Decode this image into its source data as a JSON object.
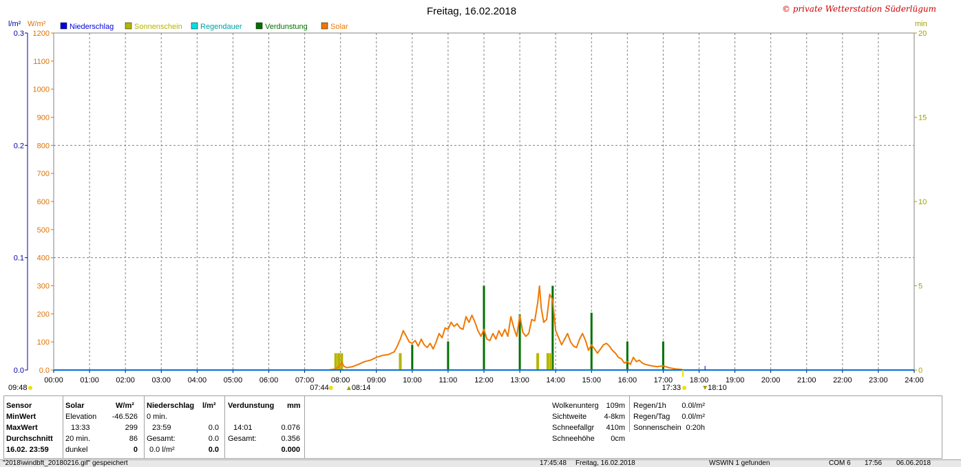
{
  "header": {
    "title": "Freitag, 16.02.2018",
    "copyright": "© private Wetterstation Süderlügum"
  },
  "legend": [
    {
      "label": "Niederschlag",
      "color": "#0000e0"
    },
    {
      "label": "Sonnenschein",
      "color": "#b5b500"
    },
    {
      "label": "Regendauer",
      "color": "#00e0e0"
    },
    {
      "label": "Verdunstung",
      "color": "#007000"
    },
    {
      "label": "Solar",
      "color": "#f07800"
    }
  ],
  "chart_data": {
    "type": "line",
    "title": "Freitag, 16.02.2018",
    "x_range": [
      "00:00",
      "24:00"
    ],
    "x_ticks": [
      "00:00",
      "01:00",
      "02:00",
      "03:00",
      "04:00",
      "05:00",
      "06:00",
      "07:00",
      "08:00",
      "09:00",
      "10:00",
      "11:00",
      "12:00",
      "13:00",
      "14:00",
      "15:00",
      "16:00",
      "17:00",
      "18:00",
      "19:00",
      "20:00",
      "21:00",
      "22:00",
      "23:00",
      "24:00"
    ],
    "axes": {
      "left_outer": {
        "unit": "l/m²",
        "range": [
          0,
          0.3
        ],
        "ticks": [
          "0.0",
          "0.1",
          "0.2",
          "0.3"
        ],
        "color": "#0000a0"
      },
      "left_inner": {
        "unit": "W/m²",
        "range": [
          0,
          1200
        ],
        "ticks": [
          "0.0",
          "100",
          "200",
          "300",
          "400",
          "500",
          "600",
          "700",
          "800",
          "900",
          "1000",
          "1100",
          "1200"
        ],
        "color": "#e07000"
      },
      "right": {
        "unit": "min",
        "range": [
          0,
          20
        ],
        "ticks": [
          "0",
          "5",
          "10",
          "15",
          "20"
        ],
        "color": "#a0a000"
      }
    },
    "grid": true,
    "markers": {
      "moon_set": "09:48",
      "sunrise": "07:44",
      "solar_start": "08:14",
      "sunset": "17:33",
      "moon_rise": "18:10"
    },
    "series": [
      {
        "name": "Solar",
        "color": "#f07800",
        "axis": "W/m²",
        "points": [
          [
            "07:40",
            0
          ],
          [
            "07:50",
            3
          ],
          [
            "07:55",
            8
          ],
          [
            "08:00",
            18
          ],
          [
            "08:02",
            30
          ],
          [
            "08:05",
            15
          ],
          [
            "08:10",
            8
          ],
          [
            "08:20",
            12
          ],
          [
            "08:30",
            20
          ],
          [
            "08:40",
            30
          ],
          [
            "08:50",
            35
          ],
          [
            "09:00",
            45
          ],
          [
            "09:10",
            52
          ],
          [
            "09:20",
            55
          ],
          [
            "09:30",
            65
          ],
          [
            "09:35",
            85
          ],
          [
            "09:40",
            110
          ],
          [
            "09:45",
            140
          ],
          [
            "09:50",
            120
          ],
          [
            "09:55",
            100
          ],
          [
            "10:00",
            95
          ],
          [
            "10:05",
            105
          ],
          [
            "10:10",
            85
          ],
          [
            "10:15",
            110
          ],
          [
            "10:20",
            90
          ],
          [
            "10:25",
            80
          ],
          [
            "10:30",
            95
          ],
          [
            "10:35",
            75
          ],
          [
            "10:40",
            100
          ],
          [
            "10:45",
            130
          ],
          [
            "10:50",
            115
          ],
          [
            "10:55",
            150
          ],
          [
            "11:00",
            145
          ],
          [
            "11:05",
            170
          ],
          [
            "11:10",
            155
          ],
          [
            "11:15",
            165
          ],
          [
            "11:20",
            150
          ],
          [
            "11:25",
            145
          ],
          [
            "11:30",
            190
          ],
          [
            "11:35",
            170
          ],
          [
            "11:40",
            195
          ],
          [
            "11:45",
            170
          ],
          [
            "11:50",
            140
          ],
          [
            "11:55",
            120
          ],
          [
            "12:00",
            145
          ],
          [
            "12:05",
            110
          ],
          [
            "12:10",
            105
          ],
          [
            "12:15",
            130
          ],
          [
            "12:20",
            110
          ],
          [
            "12:25",
            140
          ],
          [
            "12:30",
            120
          ],
          [
            "12:35",
            145
          ],
          [
            "12:40",
            120
          ],
          [
            "12:45",
            190
          ],
          [
            "12:50",
            150
          ],
          [
            "12:55",
            120
          ],
          [
            "13:00",
            195
          ],
          [
            "13:05",
            135
          ],
          [
            "13:10",
            120
          ],
          [
            "13:15",
            130
          ],
          [
            "13:20",
            180
          ],
          [
            "13:25",
            175
          ],
          [
            "13:30",
            240
          ],
          [
            "13:33",
            299
          ],
          [
            "13:36",
            220
          ],
          [
            "13:40",
            170
          ],
          [
            "13:45",
            180
          ],
          [
            "13:50",
            270
          ],
          [
            "13:55",
            250
          ],
          [
            "14:00",
            140
          ],
          [
            "14:05",
            115
          ],
          [
            "14:10",
            90
          ],
          [
            "14:15",
            110
          ],
          [
            "14:20",
            130
          ],
          [
            "14:25",
            100
          ],
          [
            "14:30",
            85
          ],
          [
            "14:35",
            80
          ],
          [
            "14:40",
            110
          ],
          [
            "14:45",
            130
          ],
          [
            "14:50",
            105
          ],
          [
            "14:55",
            70
          ],
          [
            "15:00",
            90
          ],
          [
            "15:05",
            75
          ],
          [
            "15:10",
            60
          ],
          [
            "15:15",
            75
          ],
          [
            "15:20",
            90
          ],
          [
            "15:25",
            95
          ],
          [
            "15:30",
            85
          ],
          [
            "15:35",
            70
          ],
          [
            "15:40",
            60
          ],
          [
            "15:45",
            45
          ],
          [
            "15:50",
            40
          ],
          [
            "15:55",
            25
          ],
          [
            "16:00",
            30
          ],
          [
            "16:05",
            20
          ],
          [
            "16:10",
            45
          ],
          [
            "16:15",
            30
          ],
          [
            "16:20",
            35
          ],
          [
            "16:25",
            25
          ],
          [
            "16:30",
            20
          ],
          [
            "16:40",
            15
          ],
          [
            "16:50",
            12
          ],
          [
            "17:00",
            15
          ],
          [
            "17:10",
            8
          ],
          [
            "17:20",
            4
          ],
          [
            "17:30",
            2
          ],
          [
            "17:33",
            0
          ]
        ]
      },
      {
        "name": "Verdunstung",
        "color": "#007000",
        "axis": "min",
        "bars": [
          [
            "10:00",
            1.5
          ],
          [
            "11:00",
            1.7
          ],
          [
            "12:00",
            5.0
          ],
          [
            "13:00",
            3.3
          ],
          [
            "13:55",
            5.0
          ],
          [
            "15:00",
            3.4
          ],
          [
            "16:00",
            1.7
          ],
          [
            "17:00",
            1.7
          ]
        ]
      },
      {
        "name": "Sonnenschein",
        "color": "#b5b500",
        "axis": "min",
        "bars": [
          [
            "07:52",
            1.0
          ],
          [
            "07:57",
            1.0
          ],
          [
            "08:02",
            1.0
          ],
          [
            "09:40",
            1.0
          ],
          [
            "13:30",
            1.0
          ],
          [
            "13:47",
            1.0
          ],
          [
            "13:52",
            1.0
          ]
        ]
      },
      {
        "name": "Niederschlag",
        "color": "#0000e0",
        "axis": "l/m²",
        "line_value": 0.0
      }
    ]
  },
  "stats": {
    "col_sensor": {
      "header": "Sensor",
      "rows": [
        "MinWert",
        "MaxWert",
        "Durchschnitt",
        "16.02. 23:59"
      ]
    },
    "col_solar": {
      "header": "Solar",
      "unit": "W/m²",
      "rows": [
        [
          "Elevation",
          "-46.526"
        ],
        [
          "13:33",
          "299"
        ],
        [
          "20 min.",
          "86"
        ],
        [
          "dunkel",
          "0"
        ]
      ]
    },
    "col_rain": {
      "header": "Niederschlag",
      "unit": "l/m²",
      "rows": [
        [
          "0 min.",
          ""
        ],
        [
          "23:59",
          "0.0"
        ],
        [
          "Gesamt:",
          "0.0"
        ],
        [
          "0.0 l/m²",
          "0.0"
        ]
      ]
    },
    "col_evap": {
      "header": "Verdunstung",
      "unit": "mm",
      "rows": [
        [
          "",
          ""
        ],
        [
          "14:01",
          "0.076"
        ],
        [
          "Gesamt:",
          "0.356"
        ],
        [
          "",
          "0.000"
        ]
      ]
    },
    "col_cloud": [
      [
        "Wolkenunterg",
        "109m"
      ],
      [
        "Sichtweite",
        "4-8km"
      ],
      [
        "Schneefallgr",
        "410m"
      ],
      [
        "Schneehöhe",
        "0cm"
      ]
    ],
    "col_rainrate": [
      [
        "Regen/1h",
        "0.0l/m²"
      ],
      [
        "Regen/Tag",
        "0.0l/m²"
      ],
      [
        "Sonnenschein",
        "0:20h"
      ]
    ]
  },
  "statusbar": {
    "file": "\"2018\\windbft_20180216.gif\" gespeichert",
    "time": "17:45:48",
    "date": "Freitag, 16.02.2018",
    "device": "WSWIN 1 gefunden",
    "port": "COM 6",
    "clock": "17:56",
    "today": "06.06.2018"
  }
}
